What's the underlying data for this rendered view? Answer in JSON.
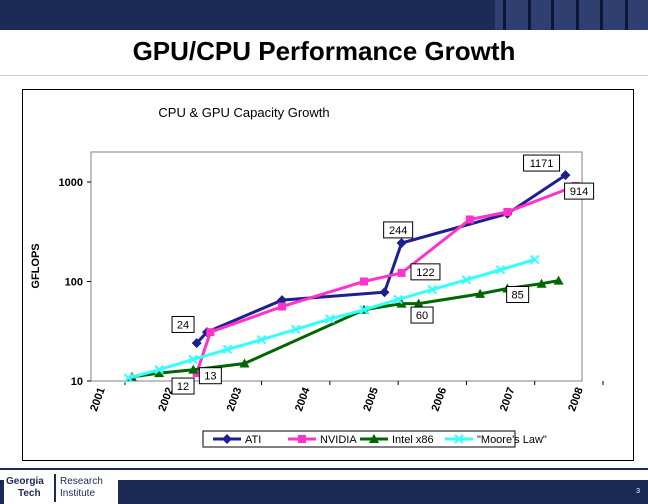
{
  "slide": {
    "title": "GPU/CPU Performance Growth",
    "page_number": "3",
    "logo_lines": [
      "Georgia",
      "Tech",
      "Research",
      "Institute"
    ]
  },
  "chart_data": {
    "type": "line",
    "title": "CPU & GPU Capacity Growth",
    "xlabel": "",
    "ylabel": "GFLOPS",
    "yscale": "log",
    "ylim": [
      10,
      2000
    ],
    "xlim": [
      2001,
      2008
    ],
    "yticks": [
      10,
      100,
      1000
    ],
    "ytick_labels": [
      "10",
      "100",
      "1000"
    ],
    "xticks": [
      2001,
      2002,
      2003,
      2004,
      2005,
      2006,
      2007,
      2008
    ],
    "xtick_labels": [
      "2001",
      "2002",
      "2003",
      "2004",
      "2005",
      "2006",
      "2007",
      "2008"
    ],
    "legend_position": "bottom",
    "series": [
      {
        "name": "ATI",
        "color": "#1f1f8f",
        "marker": "diamond",
        "points": [
          [
            2002.05,
            24
          ],
          [
            2002.2,
            31
          ],
          [
            2003.3,
            65
          ],
          [
            2004.8,
            78
          ],
          [
            2005.05,
            244
          ],
          [
            2006.6,
            480
          ],
          [
            2007.45,
            1171
          ]
        ]
      },
      {
        "name": "NVIDIA",
        "color": "#ff33cc",
        "marker": "square",
        "points": [
          [
            2002.05,
            12
          ],
          [
            2002.25,
            31
          ],
          [
            2003.3,
            56
          ],
          [
            2004.5,
            100
          ],
          [
            2005.05,
            122
          ],
          [
            2006.05,
            420
          ],
          [
            2006.6,
            500
          ],
          [
            2007.6,
            914
          ]
        ]
      },
      {
        "name": "Intel x86",
        "color": "#006600",
        "marker": "triangle",
        "points": [
          [
            2001.1,
            11
          ],
          [
            2001.5,
            12
          ],
          [
            2002.0,
            13
          ],
          [
            2002.75,
            15
          ],
          [
            2004.5,
            52
          ],
          [
            2005.05,
            60
          ],
          [
            2005.3,
            60
          ],
          [
            2006.2,
            75
          ],
          [
            2006.6,
            85
          ],
          [
            2007.1,
            95
          ],
          [
            2007.35,
            102
          ]
        ]
      },
      {
        "name": "\"Moore's Law\"",
        "color": "#33ffff",
        "marker": "x",
        "points": [
          [
            2001.05,
            10.7
          ],
          [
            2001.5,
            13
          ],
          [
            2002.0,
            16.5
          ],
          [
            2002.5,
            20.8
          ],
          [
            2003.0,
            26
          ],
          [
            2003.5,
            33
          ],
          [
            2004.0,
            42
          ],
          [
            2004.5,
            52
          ],
          [
            2005.0,
            66
          ],
          [
            2005.5,
            83
          ],
          [
            2006.0,
            104
          ],
          [
            2006.5,
            131
          ],
          [
            2007.0,
            166
          ]
        ]
      }
    ],
    "annotations": [
      {
        "text": "1171",
        "x": 2007.1,
        "y": 1550
      },
      {
        "text": "914",
        "x": 2007.65,
        "y": 810
      },
      {
        "text": "244",
        "x": 2005.0,
        "y": 330
      },
      {
        "text": "122",
        "x": 2005.4,
        "y": 125
      },
      {
        "text": "85",
        "x": 2006.75,
        "y": 74
      },
      {
        "text": "60",
        "x": 2005.35,
        "y": 46
      },
      {
        "text": "24",
        "x": 2001.85,
        "y": 37
      },
      {
        "text": "13",
        "x": 2002.25,
        "y": 11.3
      },
      {
        "text": "12",
        "x": 2001.85,
        "y": 8.9
      }
    ]
  }
}
